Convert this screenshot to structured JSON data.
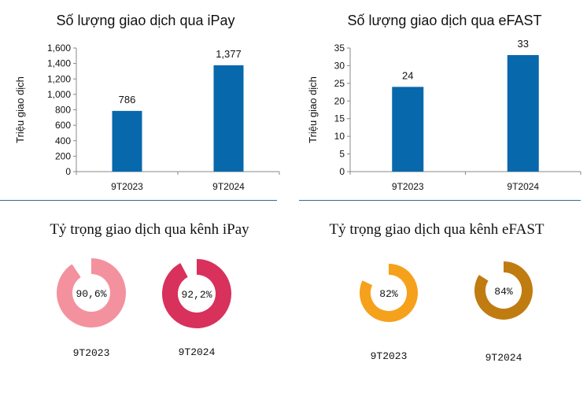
{
  "chart_data": [
    {
      "type": "bar",
      "title": "Số lượng giao dịch qua iPay",
      "ylabel": "Triệu giao dịch",
      "xlabel": "",
      "categories": [
        "9T2023",
        "9T2024"
      ],
      "values": [
        786,
        1377
      ],
      "value_labels": [
        "786",
        "1,377"
      ],
      "ylim": [
        0,
        1600
      ],
      "yticks": [
        "0",
        "200",
        "400",
        "600",
        "800",
        "1,000",
        "1,200",
        "1,400",
        "1,600"
      ],
      "ytick_values": [
        0,
        200,
        400,
        600,
        800,
        1000,
        1200,
        1400,
        1600
      ],
      "color": "#0868ac"
    },
    {
      "type": "bar",
      "title": "Số lượng giao dịch qua eFAST",
      "ylabel": "Triệu giao dịch",
      "xlabel": "",
      "categories": [
        "9T2023",
        "9T2024"
      ],
      "values": [
        24,
        33
      ],
      "value_labels": [
        "24",
        "33"
      ],
      "ylim": [
        0,
        35
      ],
      "yticks": [
        "0",
        "5",
        "10",
        "15",
        "20",
        "25",
        "30",
        "35"
      ],
      "ytick_values": [
        0,
        5,
        10,
        15,
        20,
        25,
        30,
        35
      ],
      "color": "#0868ac"
    },
    {
      "type": "pie",
      "title": "Tỷ trọng giao dịch qua kênh iPay",
      "items": [
        {
          "label": "9T2023",
          "value": 90.6,
          "value_label": "90,6%",
          "color": "#f4919e"
        },
        {
          "label": "9T2024",
          "value": 92.2,
          "value_label": "92,2%",
          "color": "#d8315b"
        }
      ]
    },
    {
      "type": "pie",
      "title": "Tỷ trọng giao dịch qua kênh eFAST",
      "items": [
        {
          "label": "9T2023",
          "value": 82,
          "value_label": "82%",
          "color": "#f5a11c"
        },
        {
          "label": "9T2024",
          "value": 84,
          "value_label": "84%",
          "color": "#c07c10"
        }
      ]
    }
  ],
  "colors": {
    "divider": "#3a6a8c",
    "axis": "#888888",
    "text": "#111111"
  }
}
